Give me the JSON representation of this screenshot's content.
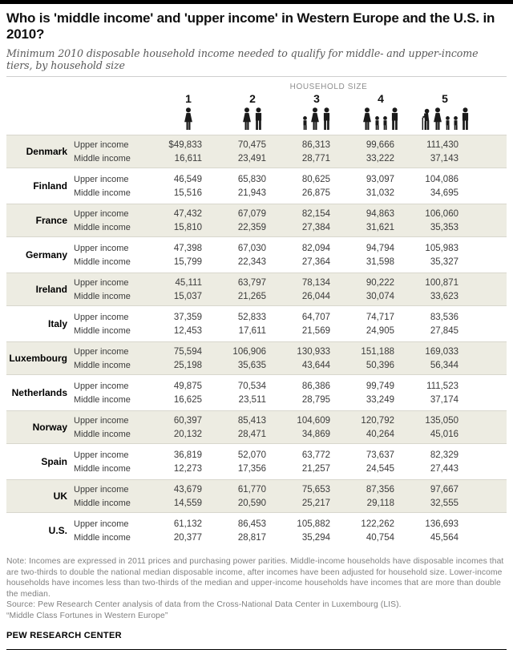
{
  "header": {
    "title": "Who is 'middle income' and 'upper income' in Western Europe and the U.S. in 2010?",
    "subtitle": "Minimum 2010 disposable household income needed to qualify for middle- and upper-income tiers, by household size",
    "household_size_label": "HOUSEHOLD SIZE"
  },
  "columns": [
    {
      "label": "1",
      "icon": "household-1-icon",
      "figures": [
        "woman"
      ]
    },
    {
      "label": "2",
      "icon": "household-2-icon",
      "figures": [
        "woman",
        "man"
      ]
    },
    {
      "label": "3",
      "icon": "household-3-icon",
      "figures": [
        "child",
        "woman",
        "man"
      ]
    },
    {
      "label": "4",
      "icon": "household-4-icon",
      "figures": [
        "woman",
        "child",
        "child",
        "man"
      ]
    },
    {
      "label": "5",
      "icon": "household-5-icon",
      "figures": [
        "elder",
        "woman",
        "child",
        "child",
        "man"
      ]
    }
  ],
  "tier_labels": {
    "upper": "Upper income",
    "middle": "Middle income"
  },
  "chart_data": {
    "type": "table",
    "title": "Who is 'middle income' and 'upper income' in Western Europe and the U.S. in 2010?",
    "columns": [
      "1",
      "2",
      "3",
      "4",
      "5"
    ],
    "rows": [
      {
        "country": "Denmark",
        "upper": [
          "$49,833",
          "70,475",
          "86,313",
          "99,666",
          "111,430"
        ],
        "middle": [
          "16,611",
          "23,491",
          "28,771",
          "33,222",
          "37,143"
        ]
      },
      {
        "country": "Finland",
        "upper": [
          "46,549",
          "65,830",
          "80,625",
          "93,097",
          "104,086"
        ],
        "middle": [
          "15,516",
          "21,943",
          "26,875",
          "31,032",
          "34,695"
        ]
      },
      {
        "country": "France",
        "upper": [
          "47,432",
          "67,079",
          "82,154",
          "94,863",
          "106,060"
        ],
        "middle": [
          "15,810",
          "22,359",
          "27,384",
          "31,621",
          "35,353"
        ]
      },
      {
        "country": "Germany",
        "upper": [
          "47,398",
          "67,030",
          "82,094",
          "94,794",
          "105,983"
        ],
        "middle": [
          "15,799",
          "22,343",
          "27,364",
          "31,598",
          "35,327"
        ]
      },
      {
        "country": "Ireland",
        "upper": [
          "45,111",
          "63,797",
          "78,134",
          "90,222",
          "100,871"
        ],
        "middle": [
          "15,037",
          "21,265",
          "26,044",
          "30,074",
          "33,623"
        ]
      },
      {
        "country": "Italy",
        "upper": [
          "37,359",
          "52,833",
          "64,707",
          "74,717",
          "83,536"
        ],
        "middle": [
          "12,453",
          "17,611",
          "21,569",
          "24,905",
          "27,845"
        ]
      },
      {
        "country": "Luxembourg",
        "upper": [
          "75,594",
          "106,906",
          "130,933",
          "151,188",
          "169,033"
        ],
        "middle": [
          "25,198",
          "35,635",
          "43,644",
          "50,396",
          "56,344"
        ]
      },
      {
        "country": "Netherlands",
        "upper": [
          "49,875",
          "70,534",
          "86,386",
          "99,749",
          "111,523"
        ],
        "middle": [
          "16,625",
          "23,511",
          "28,795",
          "33,249",
          "37,174"
        ]
      },
      {
        "country": "Norway",
        "upper": [
          "60,397",
          "85,413",
          "104,609",
          "120,792",
          "135,050"
        ],
        "middle": [
          "20,132",
          "28,471",
          "34,869",
          "40,264",
          "45,016"
        ]
      },
      {
        "country": "Spain",
        "upper": [
          "36,819",
          "52,070",
          "63,772",
          "73,637",
          "82,329"
        ],
        "middle": [
          "12,273",
          "17,356",
          "21,257",
          "24,545",
          "27,443"
        ]
      },
      {
        "country": "UK",
        "upper": [
          "43,679",
          "61,770",
          "75,653",
          "87,356",
          "97,667"
        ],
        "middle": [
          "14,559",
          "20,590",
          "25,217",
          "29,118",
          "32,555"
        ]
      },
      {
        "country": "U.S.",
        "upper": [
          "61,132",
          "86,453",
          "105,882",
          "122,262",
          "136,693"
        ],
        "middle": [
          "20,377",
          "28,817",
          "35,294",
          "40,754",
          "45,564"
        ]
      }
    ]
  },
  "footer": {
    "note": "Note: Incomes are expressed in 2011 prices and purchasing power parities. Middle-income households have disposable incomes that are two-thirds to double the national median disposable income, after incomes have been adjusted for household size. Lower-income households have incomes less than two-thirds of the median and upper-income households have incomes that are more than double the median.",
    "source": "Source: Pew Research Center analysis of data from the Cross-National Data Center in Luxembourg (LIS).",
    "report": "“Middle Class Fortunes in Western Europe”",
    "brand": "PEW RESEARCH CENTER"
  },
  "colors": {
    "row_shade": "#edece2",
    "bar_black": "#000000",
    "icon_black": "#1a1a1a"
  }
}
